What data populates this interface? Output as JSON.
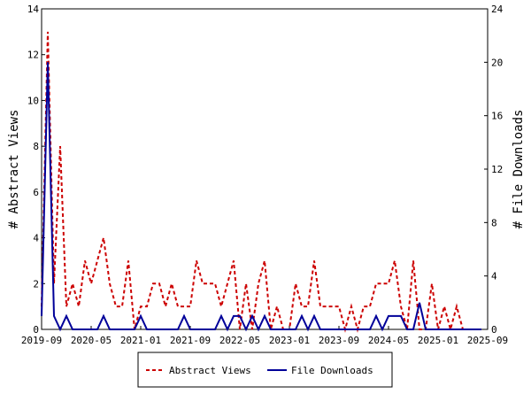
{
  "chart_data": {
    "type": "line",
    "title": "",
    "xlabel": "",
    "ylabel_left": "# Abstract Views",
    "ylabel_right": "# File Downloads",
    "x_ticks": [
      "2019-09",
      "2020-05",
      "2021-01",
      "2021-09",
      "2022-05",
      "2023-01",
      "2023-09",
      "2024-05",
      "2025-01",
      "2025-09"
    ],
    "y_left": {
      "range": [
        0,
        14
      ],
      "ticks": [
        0,
        2,
        4,
        6,
        8,
        10,
        12,
        14
      ]
    },
    "y_right": {
      "range": [
        0,
        24
      ],
      "ticks": [
        0,
        4,
        8,
        12,
        16,
        20,
        24
      ]
    },
    "grid": false,
    "legend_position": "bottom",
    "series": [
      {
        "name": "Abstract Views",
        "axis": "left",
        "style": "dashed",
        "color": "#cc0000",
        "x": [
          "2019-09",
          "2019-10",
          "2019-11",
          "2019-12",
          "2020-01",
          "2020-02",
          "2020-03",
          "2020-04",
          "2020-05",
          "2020-06",
          "2020-07",
          "2020-08",
          "2020-09",
          "2020-10",
          "2020-11",
          "2020-12",
          "2021-01",
          "2021-02",
          "2021-03",
          "2021-04",
          "2021-05",
          "2021-06",
          "2021-07",
          "2021-08",
          "2021-09",
          "2021-10",
          "2021-11",
          "2021-12",
          "2022-01",
          "2022-02",
          "2022-03",
          "2022-04",
          "2022-05",
          "2022-06",
          "2022-07",
          "2022-08",
          "2022-09",
          "2022-10",
          "2022-11",
          "2022-12",
          "2023-01",
          "2023-02",
          "2023-03",
          "2023-04",
          "2023-05",
          "2023-06",
          "2023-07",
          "2023-08",
          "2023-09",
          "2023-10",
          "2023-11",
          "2023-12",
          "2024-01",
          "2024-02",
          "2024-03",
          "2024-04",
          "2024-05",
          "2024-06",
          "2024-07",
          "2024-08",
          "2024-09",
          "2024-10",
          "2024-11",
          "2024-12",
          "2025-01",
          "2025-02",
          "2025-03",
          "2025-04",
          "2025-05",
          "2025-06",
          "2025-07",
          "2025-08"
        ],
        "values": [
          1,
          13,
          2,
          8,
          1,
          2,
          1,
          3,
          2,
          3,
          4,
          2,
          1,
          1,
          3,
          0,
          1,
          1,
          2,
          2,
          1,
          2,
          1,
          1,
          1,
          3,
          2,
          2,
          2,
          1,
          2,
          3,
          0,
          2,
          0,
          2,
          3,
          0,
          1,
          0,
          0,
          2,
          1,
          1,
          3,
          1,
          1,
          1,
          1,
          0,
          1,
          0,
          1,
          1,
          2,
          2,
          2,
          3,
          1,
          0,
          3,
          0,
          0,
          2,
          0,
          1,
          0,
          1,
          0,
          0,
          0,
          0
        ]
      },
      {
        "name": "File Downloads",
        "axis": "right",
        "style": "solid",
        "color": "#000099",
        "x": [
          "2019-09",
          "2019-10",
          "2019-11",
          "2019-12",
          "2020-01",
          "2020-02",
          "2020-03",
          "2020-04",
          "2020-05",
          "2020-06",
          "2020-07",
          "2020-08",
          "2020-09",
          "2020-10",
          "2020-11",
          "2020-12",
          "2021-01",
          "2021-02",
          "2021-03",
          "2021-04",
          "2021-05",
          "2021-06",
          "2021-07",
          "2021-08",
          "2021-09",
          "2021-10",
          "2021-11",
          "2021-12",
          "2022-01",
          "2022-02",
          "2022-03",
          "2022-04",
          "2022-05",
          "2022-06",
          "2022-07",
          "2022-08",
          "2022-09",
          "2022-10",
          "2022-11",
          "2022-12",
          "2023-01",
          "2023-02",
          "2023-03",
          "2023-04",
          "2023-05",
          "2023-06",
          "2023-07",
          "2023-08",
          "2023-09",
          "2023-10",
          "2023-11",
          "2023-12",
          "2024-01",
          "2024-02",
          "2024-03",
          "2024-04",
          "2024-05",
          "2024-06",
          "2024-07",
          "2024-08",
          "2024-09",
          "2024-10",
          "2024-11",
          "2024-12",
          "2025-01",
          "2025-02",
          "2025-03",
          "2025-04",
          "2025-05",
          "2025-06",
          "2025-07",
          "2025-08"
        ],
        "values": [
          1,
          20,
          1,
          0,
          1,
          0,
          0,
          0,
          0,
          0,
          1,
          0,
          0,
          0,
          0,
          0,
          1,
          0,
          0,
          0,
          0,
          0,
          0,
          1,
          0,
          0,
          0,
          0,
          0,
          1,
          0,
          1,
          1,
          0,
          1,
          0,
          1,
          0,
          0,
          0,
          0,
          0,
          1,
          0,
          1,
          0,
          0,
          0,
          0,
          0,
          0,
          0,
          0,
          0,
          1,
          0,
          1,
          1,
          1,
          0,
          0,
          2,
          0,
          0,
          0,
          0,
          0,
          0,
          0,
          0,
          0,
          0
        ]
      }
    ]
  }
}
